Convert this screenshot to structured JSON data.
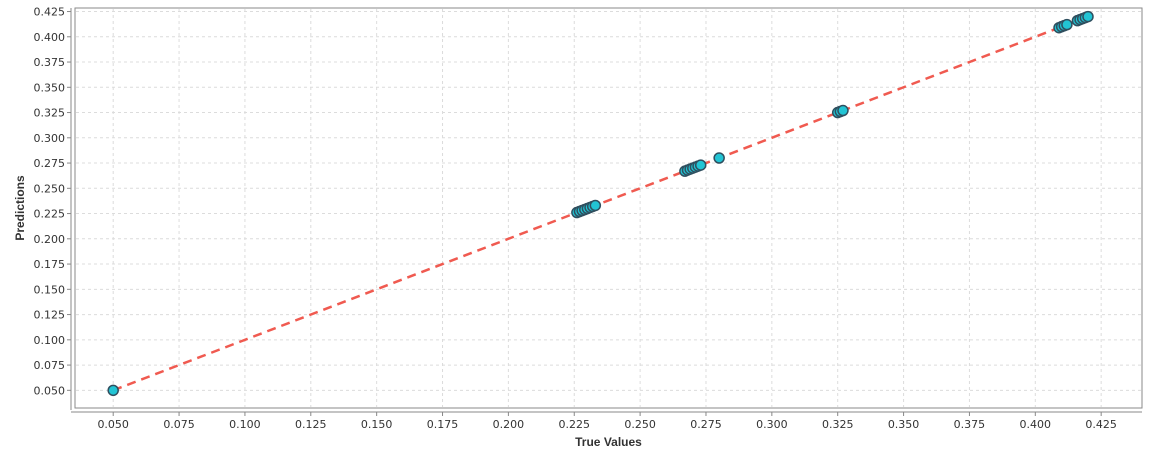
{
  "chart_data": {
    "type": "scatter",
    "title": "",
    "xlabel": "True Values",
    "ylabel": "Predictions",
    "xlim": [
      0.0355,
      0.4405
    ],
    "ylim": [
      0.0325,
      0.4285
    ],
    "x_ticks": [
      "0.050",
      "0.075",
      "0.100",
      "0.125",
      "0.150",
      "0.175",
      "0.200",
      "0.225",
      "0.250",
      "0.275",
      "0.300",
      "0.325",
      "0.350",
      "0.375",
      "0.400",
      "0.425"
    ],
    "y_ticks": [
      "0.050",
      "0.075",
      "0.100",
      "0.125",
      "0.150",
      "0.175",
      "0.200",
      "0.225",
      "0.250",
      "0.275",
      "0.300",
      "0.325",
      "0.350",
      "0.375",
      "0.400",
      "0.425"
    ],
    "grid": true,
    "legend": false,
    "reference_line": {
      "from": [
        0.05,
        0.05
      ],
      "to": [
        0.42,
        0.42
      ],
      "color": "#f05a50",
      "style": "dashed"
    },
    "marker_fill": "#22c4d4",
    "marker_edge": "#2f4f5f",
    "points": [
      {
        "x": 0.05,
        "y": 0.05
      },
      {
        "x": 0.226,
        "y": 0.226
      },
      {
        "x": 0.227,
        "y": 0.227
      },
      {
        "x": 0.228,
        "y": 0.228
      },
      {
        "x": 0.229,
        "y": 0.229
      },
      {
        "x": 0.23,
        "y": 0.23
      },
      {
        "x": 0.231,
        "y": 0.231
      },
      {
        "x": 0.232,
        "y": 0.232
      },
      {
        "x": 0.233,
        "y": 0.233
      },
      {
        "x": 0.267,
        "y": 0.267
      },
      {
        "x": 0.268,
        "y": 0.268
      },
      {
        "x": 0.269,
        "y": 0.269
      },
      {
        "x": 0.27,
        "y": 0.27
      },
      {
        "x": 0.271,
        "y": 0.271
      },
      {
        "x": 0.272,
        "y": 0.272
      },
      {
        "x": 0.273,
        "y": 0.273
      },
      {
        "x": 0.28,
        "y": 0.28
      },
      {
        "x": 0.325,
        "y": 0.325
      },
      {
        "x": 0.326,
        "y": 0.326
      },
      {
        "x": 0.327,
        "y": 0.327
      },
      {
        "x": 0.409,
        "y": 0.409
      },
      {
        "x": 0.41,
        "y": 0.41
      },
      {
        "x": 0.411,
        "y": 0.411
      },
      {
        "x": 0.412,
        "y": 0.412
      },
      {
        "x": 0.416,
        "y": 0.416
      },
      {
        "x": 0.417,
        "y": 0.417
      },
      {
        "x": 0.418,
        "y": 0.418
      },
      {
        "x": 0.419,
        "y": 0.419
      },
      {
        "x": 0.42,
        "y": 0.42
      }
    ]
  }
}
